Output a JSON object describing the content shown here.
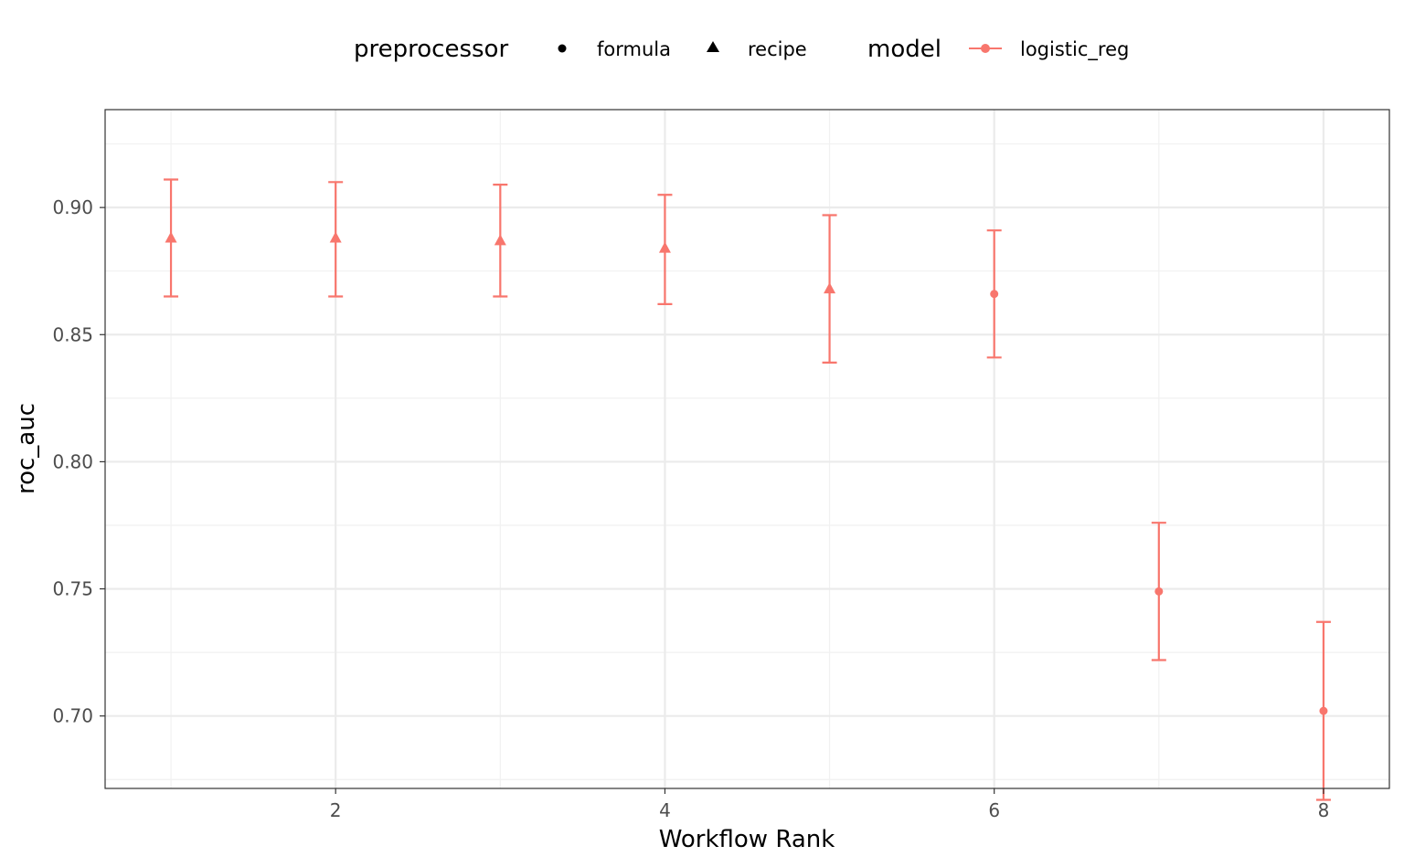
{
  "chart_data": {
    "type": "scatter",
    "title": "",
    "xlabel": "Workflow Rank",
    "ylabel": "roc_auc",
    "xlim": [
      0.6,
      8.4
    ],
    "ylim": [
      0.6715,
      0.9385
    ],
    "x_ticks": [
      2,
      4,
      6,
      8
    ],
    "x_tick_labels": [
      "2",
      "4",
      "6",
      "8"
    ],
    "y_ticks": [
      0.7,
      0.75,
      0.8,
      0.85,
      0.9
    ],
    "y_tick_labels": [
      "0.70",
      "0.75",
      "0.80",
      "0.85",
      "0.90"
    ],
    "grid": true,
    "error_bars": true,
    "legend": {
      "placement": "top",
      "groups": [
        {
          "title": "preprocessor",
          "entries": [
            {
              "label": "formula",
              "shape": "circle"
            },
            {
              "label": "recipe",
              "shape": "triangle"
            }
          ]
        },
        {
          "title": "model",
          "entries": [
            {
              "label": "logistic_reg",
              "shape": "circle-line",
              "color": "#F8766D"
            }
          ]
        }
      ]
    },
    "series": [
      {
        "name": "logistic_reg",
        "color": "#F8766D",
        "points": [
          {
            "x": 1,
            "y": 0.888,
            "lower": 0.865,
            "upper": 0.911,
            "preprocessor": "recipe"
          },
          {
            "x": 2,
            "y": 0.888,
            "lower": 0.865,
            "upper": 0.91,
            "preprocessor": "recipe"
          },
          {
            "x": 3,
            "y": 0.887,
            "lower": 0.865,
            "upper": 0.909,
            "preprocessor": "recipe"
          },
          {
            "x": 4,
            "y": 0.884,
            "lower": 0.862,
            "upper": 0.905,
            "preprocessor": "recipe"
          },
          {
            "x": 5,
            "y": 0.868,
            "lower": 0.839,
            "upper": 0.897,
            "preprocessor": "recipe"
          },
          {
            "x": 6,
            "y": 0.866,
            "lower": 0.841,
            "upper": 0.891,
            "preprocessor": "formula"
          },
          {
            "x": 7,
            "y": 0.749,
            "lower": 0.722,
            "upper": 0.776,
            "preprocessor": "formula"
          },
          {
            "x": 8,
            "y": 0.702,
            "lower": 0.667,
            "upper": 0.737,
            "preprocessor": "formula"
          }
        ]
      }
    ]
  }
}
